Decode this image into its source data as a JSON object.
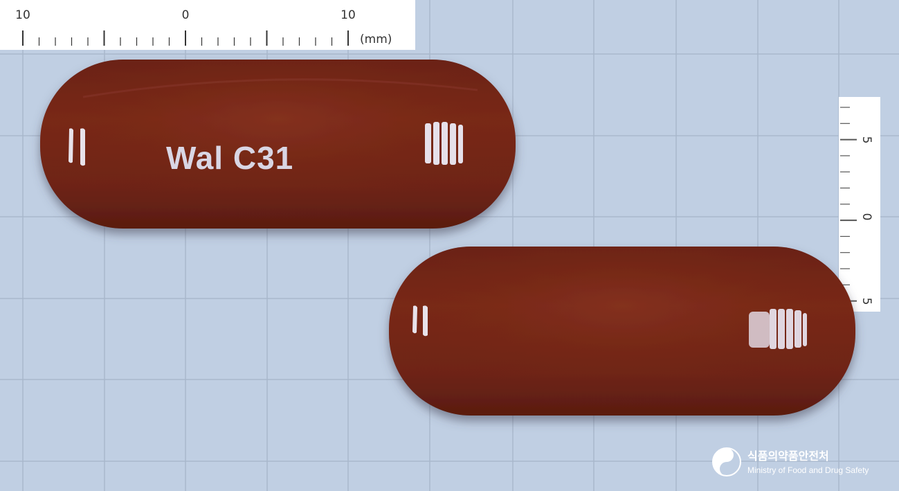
{
  "scale": {
    "top_labels": [
      "10",
      "0",
      "10"
    ],
    "unit": "(mm)",
    "right_labels": [
      "5",
      "0",
      "5"
    ]
  },
  "pill_front": {
    "imprint": "Wal C31",
    "color": "#742516"
  },
  "pill_back": {
    "imprint": "",
    "color": "#742516"
  },
  "background_color": "#c0cfe3",
  "logo": {
    "name_korean": "식품의약품안전처",
    "name_english": "Ministry of Food and Drug Safety"
  }
}
